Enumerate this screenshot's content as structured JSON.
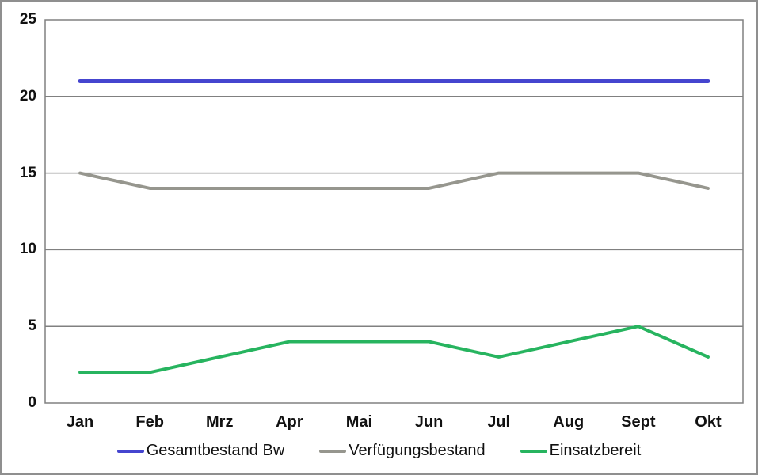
{
  "chart_data": {
    "type": "line",
    "categories": [
      "Jan",
      "Feb",
      "Mrz",
      "Apr",
      "Mai",
      "Jun",
      "Jul",
      "Aug",
      "Sept",
      "Okt"
    ],
    "series": [
      {
        "name": "Gesamtbestand Bw",
        "color": "#4545cf",
        "values": [
          21,
          21,
          21,
          21,
          21,
          21,
          21,
          21,
          21,
          21
        ]
      },
      {
        "name": "Verfügungsbestand",
        "color": "#96968e",
        "values": [
          15,
          14,
          14,
          14,
          14,
          14,
          15,
          15,
          15,
          14
        ]
      },
      {
        "name": "Einsatzbereit",
        "color": "#27b45f",
        "values": [
          2,
          2,
          3,
          4,
          4,
          4,
          3,
          4,
          5,
          3
        ]
      }
    ],
    "title": "",
    "xlabel": "",
    "ylabel": "",
    "ylim": [
      0,
      25
    ],
    "yticks": [
      0,
      5,
      10,
      15,
      20,
      25
    ],
    "grid": true,
    "legend_position": "bottom"
  },
  "colors": {
    "grid": "#808080",
    "plot_border": "#808080",
    "frame_border": "#8f8f8f",
    "text": "#111111"
  }
}
